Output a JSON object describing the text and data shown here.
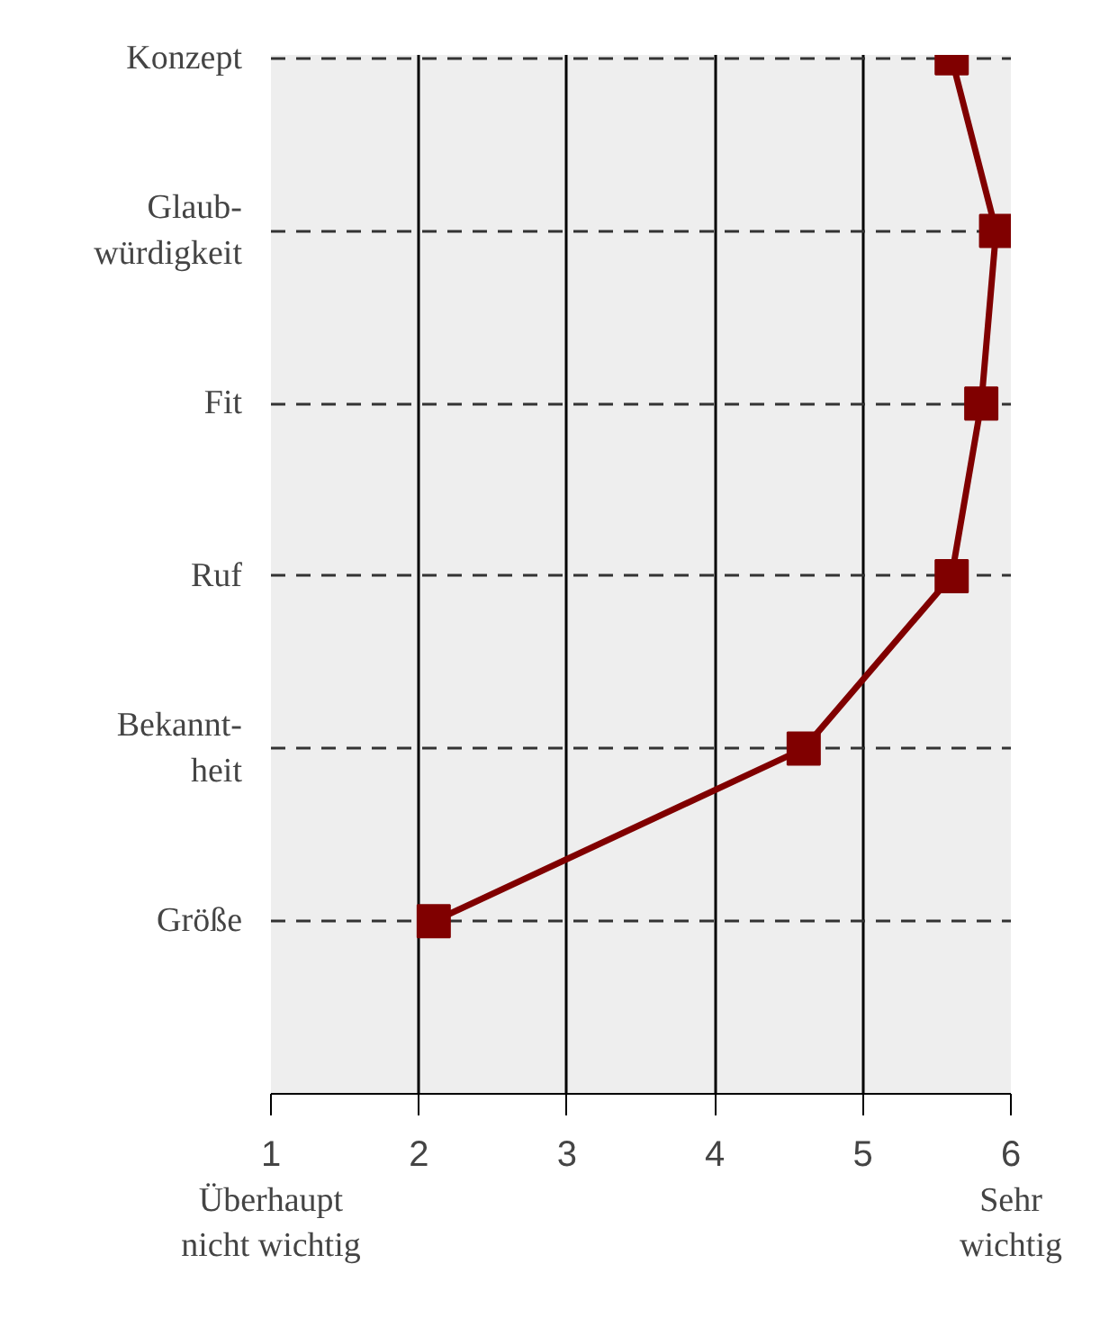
{
  "chart_data": {
    "type": "line",
    "orientation": "horizontal",
    "categories": [
      "Konzept",
      "Glaub-\nwürdigkeit",
      "Fit",
      "Ruf",
      "Bekannt-\nheit",
      "Größe"
    ],
    "values": [
      5.6,
      5.9,
      5.8,
      5.6,
      4.6,
      2.1
    ],
    "color": "#800000",
    "marker": "square",
    "line_style": "solid",
    "xlim": [
      1,
      6
    ],
    "xticks": [
      1,
      2,
      3,
      4,
      5,
      6
    ],
    "grid": true,
    "annotations": [
      "Überhaupt\nnicht wichtig",
      "Sehr\nwichtig"
    ]
  }
}
